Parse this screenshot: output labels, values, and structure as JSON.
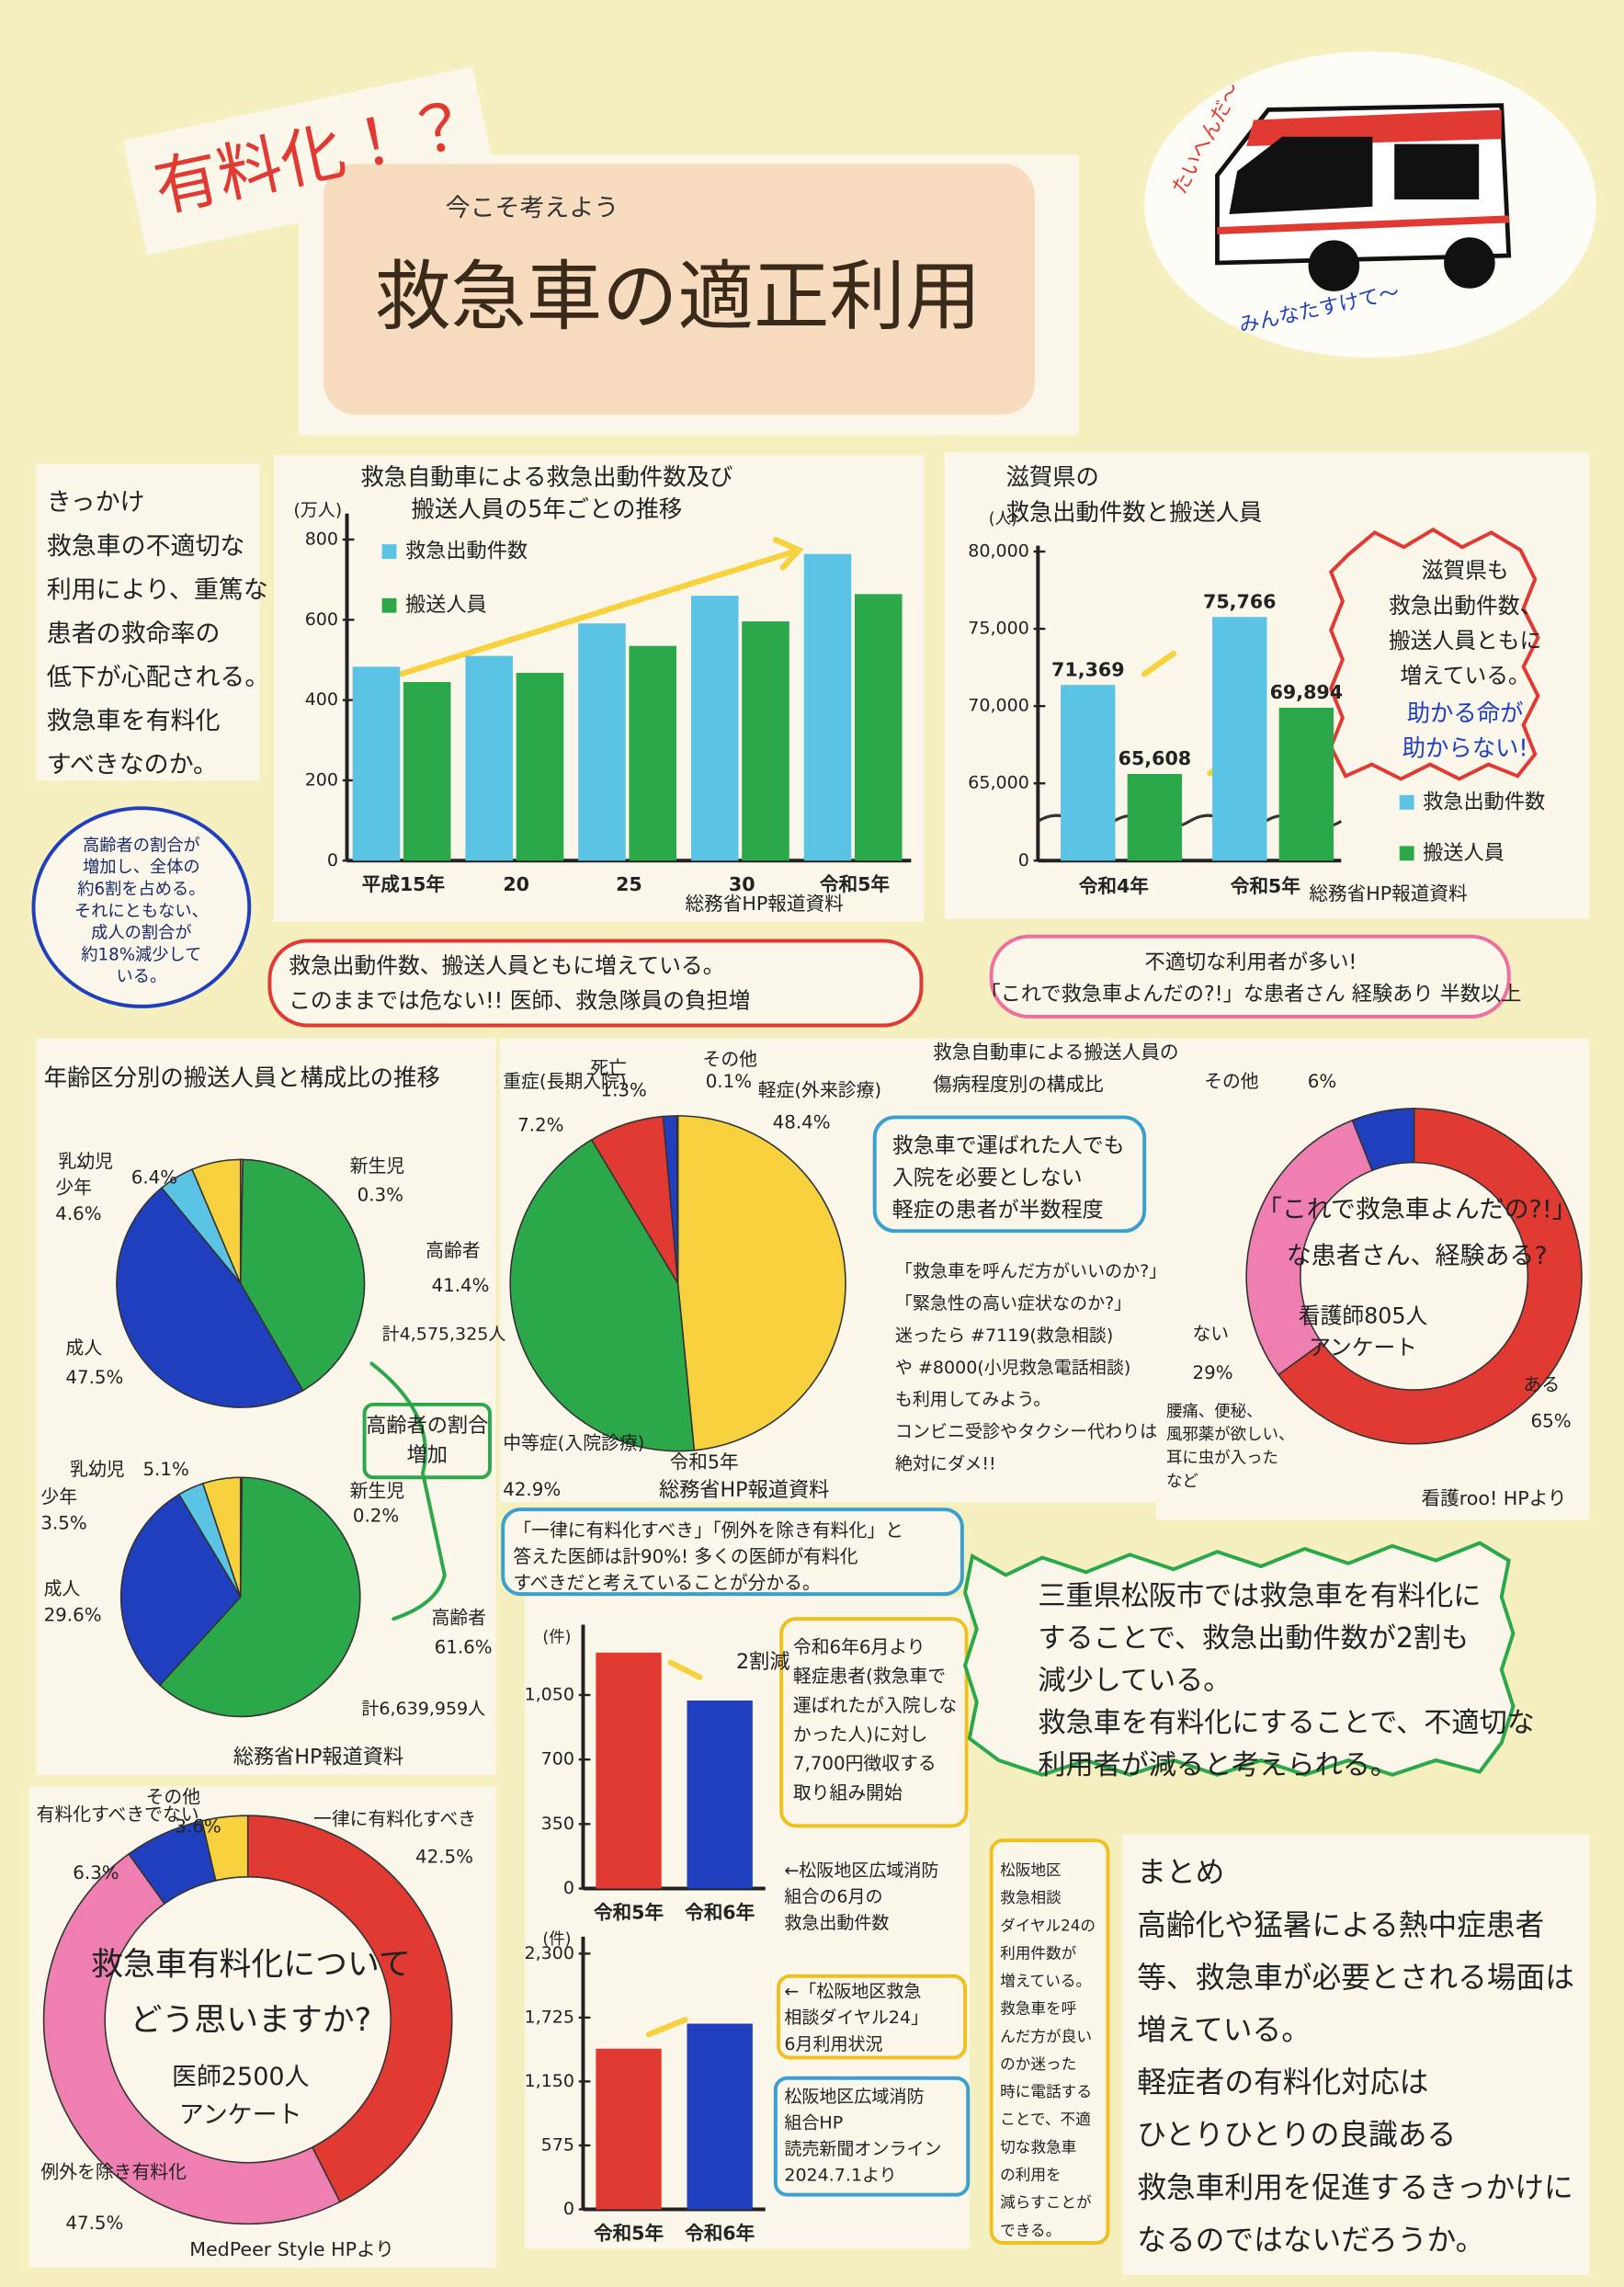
{
  "header": {
    "tag": "有料化！？",
    "kicker": "今こそ考えよう",
    "title": "救急車の適正利用",
    "cry": "たいへんだ〜",
    "plea": "みんなたすけて〜"
  },
  "notes": {
    "kikkake": [
      "きっかけ",
      "救急車の不適切な",
      "利用により、重篤な",
      "患者の救命率の",
      "低下が心配される。",
      "救急車を有料化",
      "すべきなのか。"
    ],
    "elderly": [
      "高齢者の割合が",
      "増加し、全体の",
      "約6割を占める。",
      "それにともない、",
      "成人の割合が",
      "約18%減少して",
      "いる。"
    ],
    "burden": [
      "救急出動件数、搬送人員ともに増えている。",
      "このままでは危ない!! 医師、救急隊員の負担増"
    ],
    "misuse": [
      "不適切な利用者が多い!",
      "「これで救急車よんだの?!」な患者さん 経験あり 半数以上"
    ],
    "shiga": [
      "滋賀県も",
      "救急出動件数、",
      "搬送人員ともに",
      "増えている。"
    ],
    "shiga_alert": [
      "助かる命が",
      "助からない!"
    ],
    "mild": [
      "救急車で運ばれた人でも",
      "入院を必要としない",
      "軽症の患者が半数程度"
    ],
    "advice": [
      "「救急車を呼んだ方がいいのか?」",
      "「緊急性の高い症状なのか?」",
      "迷ったら #7119(救急相談)",
      "や #8000(小児救急電話相談)",
      "も利用してみよう。",
      "コンビニ受診やタクシー代わりは",
      "絶対にダメ!!"
    ],
    "elderly_rise": [
      "高齢者の割合",
      "増加"
    ],
    "doctors": [
      "「一律に有料化すべき」「例外を除き有料化」と",
      "答えた医師は計90%! 多くの医師が有料化",
      "すべきだと考えていることが分かる。"
    ],
    "fee": [
      "令和6年6月より",
      "軽症患者(救急車で",
      "運ばれたが入院しな",
      "かった人)に対し",
      "7,700円徴収する",
      "取り組み開始"
    ],
    "matsusaka": [
      "三重県松阪市では救急車を有料化に",
      "することで、救急出動件数が2割も",
      "減少している。",
      "救急車を有料化にすることで、不適切な",
      "利用者が減ると考えられる。"
    ],
    "dial": [
      "松阪地区",
      "救急相談",
      "ダイヤル24の",
      "利用件数が",
      "増えている。",
      "救急車を呼",
      "んだ方が良い",
      "のか迷った",
      "時に電話する",
      "ことで、不適",
      "切な救急車",
      "の利用を",
      "減らすことが",
      "できる。"
    ],
    "summary": [
      "まとめ",
      "高齢化や猛暑による熱中症患者",
      "等、救急車が必要とされる場面は",
      "増えている。",
      "軽症者の有料化対応は",
      "ひとりひとりの良識ある",
      "救急車利用を促進するきっかけに",
      "なるのではないだろうか。"
    ]
  },
  "chart_data": [
    {
      "type": "bar",
      "title": [
        "救急自動車による救急出動件数及び",
        "搬送人員の5年ごとの推移"
      ],
      "y_unit": "(万人)",
      "categories": [
        "平成15年",
        "20",
        "25",
        "30",
        "令和5年"
      ],
      "series": [
        {
          "name": "救急出動件数",
          "color": "#5bc3e4",
          "values": [
            483,
            510,
            591,
            660,
            764
          ]
        },
        {
          "name": "搬送人員",
          "color": "#2aa84a",
          "values": [
            445,
            468,
            535,
            596,
            664
          ]
        }
      ],
      "ylim": [
        0,
        850
      ],
      "yticks": [
        0,
        200,
        400,
        600,
        800
      ],
      "grid": false,
      "source": "総務省HP報道資料"
    },
    {
      "type": "bar",
      "title": [
        "滋賀県の",
        "救急出動件数と搬送人員"
      ],
      "y_unit": "(人)",
      "categories": [
        "令和4年",
        "令和5年"
      ],
      "series": [
        {
          "name": "救急出動件数",
          "color": "#5bc3e4",
          "values": [
            71369,
            75766
          ],
          "value_labels": [
            "71,369",
            "75,766"
          ]
        },
        {
          "name": "搬送人員",
          "color": "#2aa84a",
          "values": [
            65608,
            69894
          ],
          "value_labels": [
            "65,608",
            "69,894"
          ]
        }
      ],
      "ylim": [
        0,
        80000
      ],
      "broken_axis": true,
      "yticks": [
        0,
        {
          "value": 65000,
          "label": "65,000"
        },
        {
          "value": 70000,
          "label": "70,000"
        },
        {
          "value": 75000,
          "label": "75,000"
        },
        {
          "value": 80000,
          "label": "80,000"
        }
      ],
      "grid": false,
      "source": "総務省HP報道資料"
    },
    {
      "type": "pie",
      "title": "年齢区分別の搬送人員と構成比の推移",
      "categories": [
        "新生児",
        "高齢者",
        "成人",
        "少年",
        "乳幼児"
      ],
      "values": [
        0.3,
        41.4,
        47.5,
        4.6,
        6.4
      ],
      "value_labels": [
        "0.3%",
        "41.4%",
        "47.5%",
        "4.6%",
        "6.4%"
      ],
      "colors": [
        "#ee7fb0",
        "#2aa84a",
        "#1f3fbf",
        "#5bc3e4",
        "#f7d23e"
      ],
      "total": "計4,575,325人"
    },
    {
      "type": "pie",
      "categories": [
        "新生児",
        "高齢者",
        "成人",
        "少年",
        "乳幼児"
      ],
      "values": [
        0.2,
        61.6,
        29.6,
        3.5,
        5.1
      ],
      "value_labels": [
        "0.2%",
        "61.6%",
        "29.6%",
        "3.5%",
        "5.1%"
      ],
      "colors": [
        "#ee7fb0",
        "#2aa84a",
        "#1f3fbf",
        "#5bc3e4",
        "#f7d23e"
      ],
      "total": "計6,639,959人",
      "source": "総務省HP報道資料"
    },
    {
      "type": "pie",
      "title": [
        "救急自動車による搬送人員の",
        "傷病程度別の構成比"
      ],
      "subtitle": "令和5年",
      "categories": [
        "軽症(外来診療)",
        "中等症(入院診療)",
        "重症(長期入院)",
        "死亡",
        "その他"
      ],
      "values": [
        48.4,
        42.9,
        7.2,
        1.3,
        0.1
      ],
      "value_labels": [
        "48.4%",
        "42.9%",
        "7.2%",
        "1.3%",
        "0.1%"
      ],
      "colors": [
        "#f7d23e",
        "#2aa84a",
        "#e03a33",
        "#1f3fbf",
        "#999999"
      ],
      "source": "総務省HP報道資料"
    },
    {
      "type": "donut",
      "title": [
        "「これで救急車よんだの?!」",
        "な患者さん、経験ある?"
      ],
      "subtitle": [
        "看護師805人",
        "アンケート"
      ],
      "categories": [
        "ある",
        "ない",
        "その他"
      ],
      "values": [
        65,
        29,
        6
      ],
      "value_labels": [
        "65%",
        "29%",
        "6%"
      ],
      "colors": [
        "#e03a33",
        "#ee7fb0",
        "#1f3fbf"
      ],
      "annotation": [
        "腰痛、便秘、",
        "風邪薬が欲しい、",
        "耳に虫が入った",
        "など"
      ],
      "source": "看護roo! HPより"
    },
    {
      "type": "donut",
      "title": [
        "救急車有料化について",
        "どう思いますか?"
      ],
      "subtitle": [
        "医師2500人",
        "アンケート"
      ],
      "categories": [
        "一律に有料化すべき",
        "例外を除き有料化",
        "有料化すべきでない",
        "その他"
      ],
      "values": [
        42.5,
        47.5,
        6.3,
        3.6
      ],
      "value_labels": [
        "42.5%",
        "47.5%",
        "6.3%",
        "3.6%"
      ],
      "colors": [
        "#e03a33",
        "#ee7fb0",
        "#1f3fbf",
        "#f7d23e"
      ],
      "source": "MedPeer Style HPより"
    },
    {
      "type": "bar",
      "y_unit": "(件)",
      "categories": [
        "令和5年",
        "令和6年"
      ],
      "values": [
        1280,
        1020
      ],
      "colors": [
        "#e03a33",
        "#1f3fbf"
      ],
      "ylim": [
        0,
        1400
      ],
      "yticks": [
        0,
        350,
        700,
        {
          "value": 1050,
          "label": "1,050"
        }
      ],
      "grid": false,
      "annotation": "2割減",
      "caption": [
        "←松阪地区広域消防",
        "組合の6月の",
        "救急出動件数"
      ]
    },
    {
      "type": "bar",
      "y_unit": "(件)",
      "categories": [
        "令和5年",
        "令和6年"
      ],
      "values": [
        1445,
        1670
      ],
      "colors": [
        "#e03a33",
        "#1f3fbf"
      ],
      "ylim": [
        0,
        2400
      ],
      "yticks": [
        0,
        575,
        {
          "value": 1150,
          "label": "1,150"
        },
        {
          "value": 1725,
          "label": "1,725"
        },
        {
          "value": 2300,
          "label": "2,300"
        }
      ],
      "grid": false,
      "caption": [
        "←「松阪地区救急",
        "相談ダイヤル24」",
        "6月利用状況"
      ],
      "source": [
        "松阪地区広域消防",
        "組合HP",
        "読売新聞オンライン",
        "2024.7.1より"
      ]
    }
  ]
}
